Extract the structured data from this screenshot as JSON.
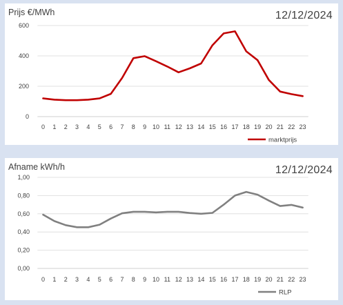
{
  "chart_data": [
    {
      "type": "line",
      "title": "",
      "ylabel": "Prijs €/MWh",
      "date": "12/12/2024",
      "categories": [
        "0",
        "1",
        "2",
        "3",
        "4",
        "5",
        "6",
        "7",
        "8",
        "9",
        "10",
        "11",
        "12",
        "13",
        "14",
        "15",
        "16",
        "17",
        "18",
        "19",
        "20",
        "21",
        "22",
        "23"
      ],
      "ylim": [
        0,
        600
      ],
      "yticks": [
        "0",
        "200",
        "400",
        "600"
      ],
      "grid": true,
      "legend_position": "bottom-right",
      "series": [
        {
          "name": "marktprijs",
          "color": "#c00000",
          "values": [
            120,
            112,
            108,
            108,
            112,
            120,
            150,
            255,
            385,
            398,
            365,
            330,
            292,
            318,
            350,
            470,
            548,
            562,
            430,
            372,
            242,
            165,
            148,
            135
          ]
        }
      ]
    },
    {
      "type": "line",
      "title": "",
      "ylabel": "Afname kWh/h",
      "date": "12/12/2024",
      "categories": [
        "0",
        "1",
        "2",
        "3",
        "4",
        "5",
        "6",
        "7",
        "8",
        "9",
        "10",
        "11",
        "12",
        "13",
        "14",
        "15",
        "16",
        "17",
        "18",
        "19",
        "20",
        "21",
        "22",
        "23"
      ],
      "ylim": [
        0,
        1.0
      ],
      "yticks": [
        "0,00",
        "0,20",
        "0,40",
        "0,60",
        "0,80",
        "1,00"
      ],
      "grid": true,
      "legend_position": "bottom-right",
      "series": [
        {
          "name": "RLP",
          "color": "#808080",
          "values": [
            0.59,
            0.52,
            0.475,
            0.452,
            0.452,
            0.48,
            0.548,
            0.605,
            0.622,
            0.622,
            0.615,
            0.622,
            0.622,
            0.608,
            0.6,
            0.61,
            0.7,
            0.8,
            0.84,
            0.81,
            0.745,
            0.685,
            0.698,
            0.668
          ]
        }
      ]
    }
  ]
}
